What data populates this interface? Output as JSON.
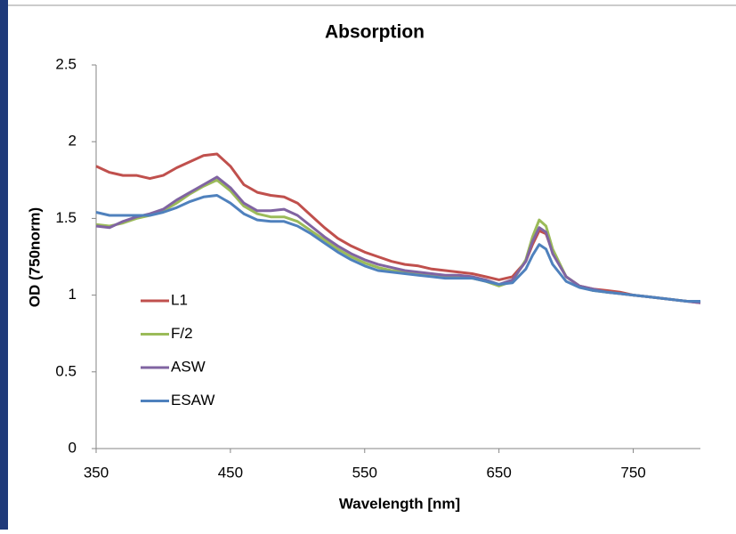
{
  "chart_data": {
    "type": "line",
    "title": "Absorption",
    "x_label": "Wavelength [nm]",
    "y_label": "OD (750norm)",
    "x": [
      350,
      360,
      370,
      380,
      390,
      400,
      410,
      420,
      430,
      440,
      450,
      460,
      470,
      480,
      490,
      500,
      510,
      520,
      530,
      540,
      550,
      560,
      570,
      580,
      590,
      600,
      610,
      620,
      630,
      640,
      650,
      660,
      670,
      675,
      680,
      685,
      690,
      700,
      710,
      720,
      730,
      740,
      750,
      760,
      770,
      780,
      790,
      800
    ],
    "series": [
      {
        "name": "L1",
        "color": "#c0504d",
        "values": [
          1.84,
          1.8,
          1.78,
          1.78,
          1.76,
          1.78,
          1.83,
          1.87,
          1.91,
          1.92,
          1.84,
          1.72,
          1.67,
          1.65,
          1.64,
          1.6,
          1.52,
          1.44,
          1.37,
          1.32,
          1.28,
          1.25,
          1.22,
          1.2,
          1.19,
          1.17,
          1.16,
          1.15,
          1.14,
          1.12,
          1.1,
          1.12,
          1.22,
          1.33,
          1.42,
          1.4,
          1.28,
          1.12,
          1.06,
          1.04,
          1.03,
          1.02,
          1.0,
          0.99,
          0.98,
          0.97,
          0.96,
          0.95
        ]
      },
      {
        "name": "F/2",
        "color": "#9bbb59",
        "values": [
          1.46,
          1.45,
          1.47,
          1.5,
          1.52,
          1.55,
          1.6,
          1.66,
          1.71,
          1.75,
          1.68,
          1.58,
          1.53,
          1.51,
          1.51,
          1.48,
          1.42,
          1.36,
          1.3,
          1.25,
          1.21,
          1.18,
          1.16,
          1.15,
          1.14,
          1.13,
          1.12,
          1.12,
          1.11,
          1.09,
          1.06,
          1.09,
          1.23,
          1.38,
          1.49,
          1.45,
          1.3,
          1.12,
          1.06,
          1.03,
          1.02,
          1.01,
          1.0,
          0.99,
          0.98,
          0.97,
          0.96,
          0.96
        ]
      },
      {
        "name": "ASW",
        "color": "#8064a2",
        "values": [
          1.45,
          1.44,
          1.48,
          1.51,
          1.53,
          1.56,
          1.62,
          1.67,
          1.72,
          1.77,
          1.7,
          1.6,
          1.55,
          1.55,
          1.56,
          1.52,
          1.45,
          1.38,
          1.32,
          1.27,
          1.23,
          1.2,
          1.18,
          1.16,
          1.15,
          1.14,
          1.13,
          1.13,
          1.12,
          1.1,
          1.07,
          1.1,
          1.22,
          1.35,
          1.44,
          1.41,
          1.27,
          1.12,
          1.06,
          1.04,
          1.02,
          1.01,
          1.0,
          0.99,
          0.98,
          0.97,
          0.96,
          0.95
        ]
      },
      {
        "name": "ESAW",
        "color": "#4f81bd",
        "values": [
          1.54,
          1.52,
          1.52,
          1.52,
          1.52,
          1.54,
          1.57,
          1.61,
          1.64,
          1.65,
          1.6,
          1.53,
          1.49,
          1.48,
          1.48,
          1.45,
          1.4,
          1.34,
          1.28,
          1.23,
          1.19,
          1.16,
          1.15,
          1.14,
          1.13,
          1.12,
          1.11,
          1.11,
          1.11,
          1.09,
          1.07,
          1.08,
          1.17,
          1.26,
          1.33,
          1.3,
          1.2,
          1.09,
          1.05,
          1.03,
          1.02,
          1.01,
          1.0,
          0.99,
          0.98,
          0.97,
          0.96,
          0.96
        ]
      }
    ],
    "xlim": [
      350,
      800
    ],
    "xticks": [
      350,
      450,
      550,
      650,
      750
    ],
    "ylim": [
      0,
      2.5
    ],
    "yticks": [
      0,
      0.5,
      1,
      1.5,
      2,
      2.5
    ],
    "grid": false,
    "legend_position": "center-left"
  }
}
